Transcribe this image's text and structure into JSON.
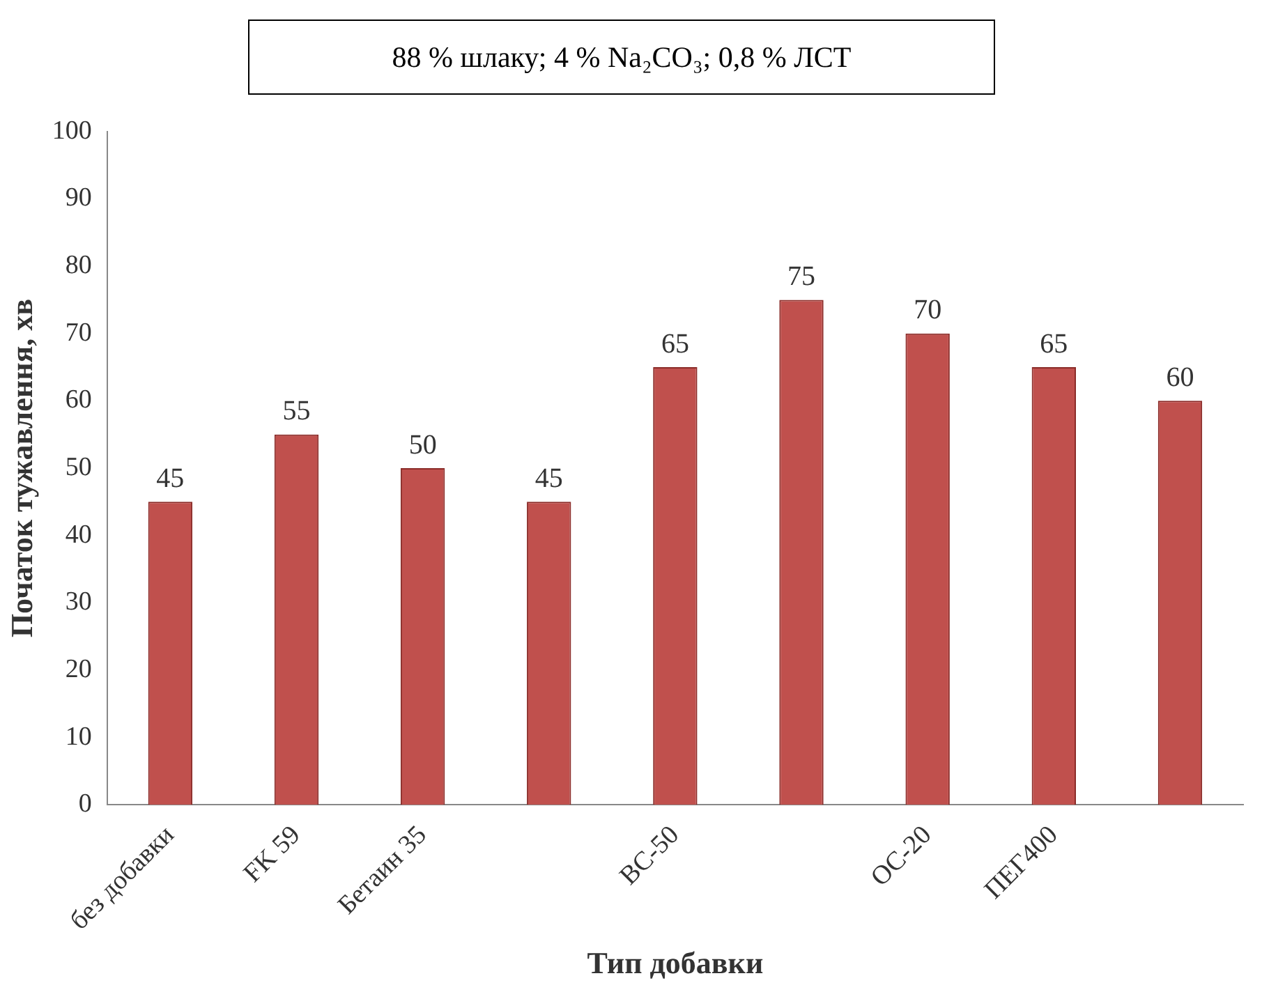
{
  "chart_data": {
    "type": "bar",
    "title": "88 % шлаку; 4 % Na₂CO₃; 0,8 % ЛСТ",
    "xlabel": "Тип добавки",
    "ylabel": "Початок тужавлення, хв",
    "categories": [
      "без добавки",
      "FK 59",
      "Бетаин 35",
      null,
      "BC-50",
      null,
      "ОС-20",
      "ПЕГ400",
      null
    ],
    "values": [
      45,
      55,
      50,
      45,
      65,
      75,
      70,
      65,
      60
    ],
    "color": "#c0504d",
    "ylim": [
      0,
      100
    ],
    "yticks": [
      0,
      10,
      20,
      30,
      40,
      50,
      60,
      70,
      80,
      90,
      100
    ],
    "grid": false,
    "legend": false,
    "data_labels": true
  }
}
